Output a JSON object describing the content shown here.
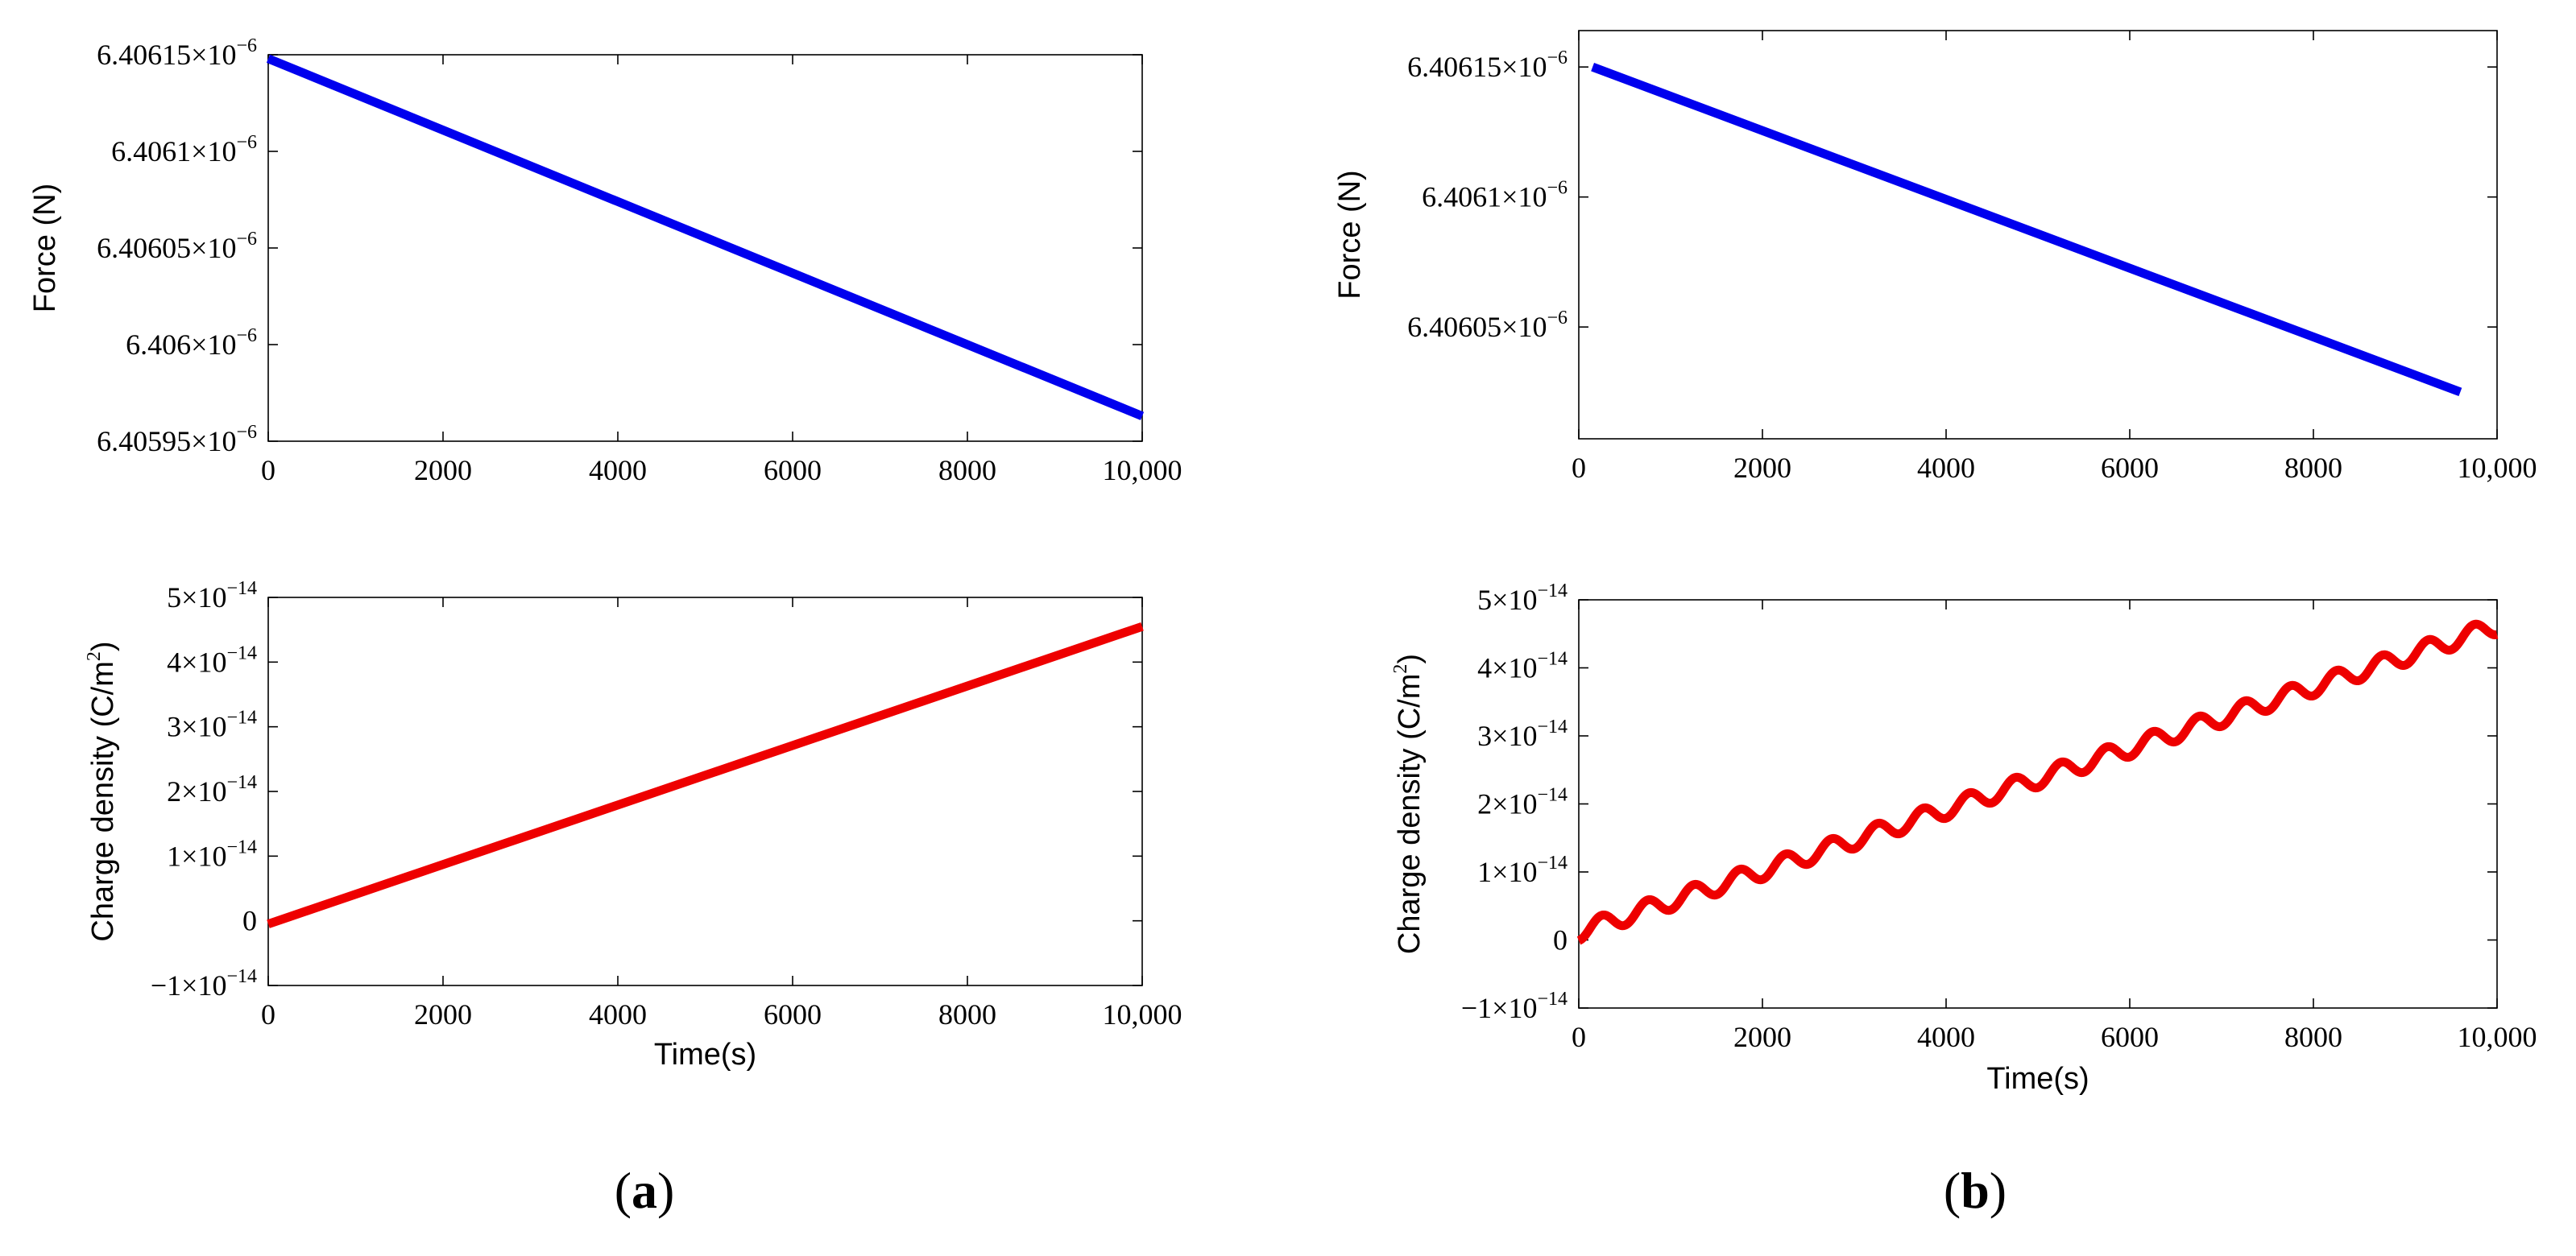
{
  "chart_data": [
    {
      "id": "a-force",
      "panel": "a",
      "type": "line",
      "ylabel": "Force (N)",
      "xlabel": "",
      "xlim": [
        0,
        10000
      ],
      "ylim": [
        6.40595e-06,
        6.40615e-06
      ],
      "xticks": [
        {
          "value": 0,
          "label": "0"
        },
        {
          "value": 2000,
          "label": "2000"
        },
        {
          "value": 4000,
          "label": "4000"
        },
        {
          "value": 6000,
          "label": "6000"
        },
        {
          "value": 8000,
          "label": "8000"
        },
        {
          "value": 10000,
          "label": "10,000"
        }
      ],
      "yticks": [
        {
          "value": 6.40615e-06,
          "mantissa": "6.40615×10",
          "exp": "−6"
        },
        {
          "value": 6.4061e-06,
          "mantissa": "6.4061×10",
          "exp": "−6"
        },
        {
          "value": 6.40605e-06,
          "mantissa": "6.40605×10",
          "exp": "−6"
        },
        {
          "value": 6.406e-06,
          "mantissa": "6.406×10",
          "exp": "−6"
        },
        {
          "value": 6.40595e-06,
          "mantissa": "6.40595×10",
          "exp": "−6"
        }
      ],
      "series": [
        {
          "name": "Force",
          "color": "#0000ee",
          "x": [
            0,
            10000
          ],
          "y": [
            6.406148e-06,
            6.405963e-06
          ]
        }
      ]
    },
    {
      "id": "a-charge",
      "panel": "a",
      "type": "line",
      "ylabel_main": "Charge density (C/m",
      "ylabel_sup": "2",
      "ylabel_end": ")",
      "xlabel": "Time(s)",
      "xlim": [
        0,
        10000
      ],
      "ylim": [
        -1e-14,
        5e-14
      ],
      "xticks": [
        {
          "value": 0,
          "label": "0"
        },
        {
          "value": 2000,
          "label": "2000"
        },
        {
          "value": 4000,
          "label": "4000"
        },
        {
          "value": 6000,
          "label": "6000"
        },
        {
          "value": 8000,
          "label": "8000"
        },
        {
          "value": 10000,
          "label": "10,000"
        }
      ],
      "yticks": [
        {
          "value": 5e-14,
          "mantissa": "5×10",
          "exp": "−14"
        },
        {
          "value": 4e-14,
          "mantissa": "4×10",
          "exp": "−14"
        },
        {
          "value": 3e-14,
          "mantissa": "3×10",
          "exp": "−14"
        },
        {
          "value": 2e-14,
          "mantissa": "2×10",
          "exp": "−14"
        },
        {
          "value": 1e-14,
          "mantissa": "1×10",
          "exp": "−14"
        },
        {
          "value": 0,
          "mantissa": "0",
          "exp": ""
        },
        {
          "value": -1e-14,
          "mantissa": "−1×10",
          "exp": "−14"
        }
      ],
      "series": [
        {
          "name": "Charge density",
          "color": "#ee0000",
          "x": [
            0,
            10000
          ],
          "y": [
            -5e-16,
            4.55e-14
          ]
        }
      ]
    },
    {
      "id": "b-force",
      "panel": "b",
      "type": "line",
      "ylabel": "Force (N)",
      "xlabel": "",
      "xlim": [
        0,
        10000
      ],
      "ylim": [
        6.406007e-06,
        6.406164e-06
      ],
      "xticks": [
        {
          "value": 0,
          "label": "0"
        },
        {
          "value": 2000,
          "label": "2000"
        },
        {
          "value": 4000,
          "label": "4000"
        },
        {
          "value": 6000,
          "label": "6000"
        },
        {
          "value": 8000,
          "label": "8000"
        },
        {
          "value": 10000,
          "label": "10,000"
        }
      ],
      "yticks": [
        {
          "value": 6.40615e-06,
          "mantissa": "6.40615×10",
          "exp": "−6"
        },
        {
          "value": 6.4061e-06,
          "mantissa": "6.4061×10",
          "exp": "−6"
        },
        {
          "value": 6.40605e-06,
          "mantissa": "6.40605×10",
          "exp": "−6"
        }
      ],
      "series": [
        {
          "name": "Force",
          "color": "#0000ee",
          "x": [
            150,
            9600
          ],
          "y": [
            6.40615e-06,
            6.406025e-06
          ]
        }
      ]
    },
    {
      "id": "b-charge",
      "panel": "b",
      "type": "line",
      "ylabel_main": "Charge density (C/m",
      "ylabel_sup": "2",
      "ylabel_end": ")",
      "xlabel": "Time(s)",
      "xlim": [
        0,
        10000
      ],
      "ylim": [
        -1e-14,
        5e-14
      ],
      "xticks": [
        {
          "value": 0,
          "label": "0"
        },
        {
          "value": 2000,
          "label": "2000"
        },
        {
          "value": 4000,
          "label": "4000"
        },
        {
          "value": 6000,
          "label": "6000"
        },
        {
          "value": 8000,
          "label": "8000"
        },
        {
          "value": 10000,
          "label": "10,000"
        }
      ],
      "yticks": [
        {
          "value": 5e-14,
          "mantissa": "5×10",
          "exp": "−14"
        },
        {
          "value": 4e-14,
          "mantissa": "4×10",
          "exp": "−14"
        },
        {
          "value": 3e-14,
          "mantissa": "3×10",
          "exp": "−14"
        },
        {
          "value": 2e-14,
          "mantissa": "2×10",
          "exp": "−14"
        },
        {
          "value": 1e-14,
          "mantissa": "1×10",
          "exp": "−14"
        },
        {
          "value": 0,
          "mantissa": "0",
          "exp": ""
        },
        {
          "value": -1e-14,
          "mantissa": "−1×10",
          "exp": "−14"
        }
      ],
      "series": [
        {
          "name": "Charge density",
          "color": "#ee0000",
          "oscillating": true,
          "x_start": 0,
          "x_end": 10000,
          "trend_start": 1.2e-15,
          "trend_end": 4.62e-14,
          "amplitude": 1.3e-15,
          "period": 500
        }
      ]
    }
  ],
  "panel_labels": {
    "a": {
      "open": "(",
      "letter": "a",
      "close": ")"
    },
    "b": {
      "open": "(",
      "letter": "b",
      "close": ")"
    }
  }
}
